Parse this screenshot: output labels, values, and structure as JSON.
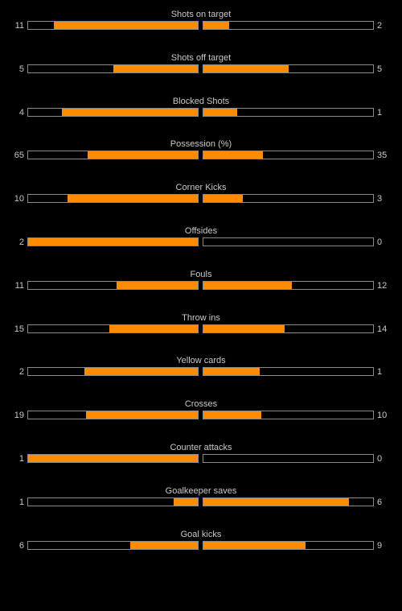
{
  "colors": {
    "background": "#000000",
    "bar_fill": "#ff8c00",
    "bar_border": "#8a8a8a",
    "text": "#c8c8c8"
  },
  "stats": [
    {
      "label": "Shots on target",
      "home": "11",
      "away": "2",
      "home_fill": 0.85,
      "away_fill": 0.15
    },
    {
      "label": "Shots off target",
      "home": "5",
      "away": "5",
      "home_fill": 0.5,
      "away_fill": 0.5
    },
    {
      "label": "Blocked Shots",
      "home": "4",
      "away": "1",
      "home_fill": 0.8,
      "away_fill": 0.2
    },
    {
      "label": "Possession (%)",
      "home": "65",
      "away": "35",
      "home_fill": 0.65,
      "away_fill": 0.35
    },
    {
      "label": "Corner Kicks",
      "home": "10",
      "away": "3",
      "home_fill": 0.77,
      "away_fill": 0.23
    },
    {
      "label": "Offsides",
      "home": "2",
      "away": "0",
      "home_fill": 1.0,
      "away_fill": 0.0
    },
    {
      "label": "Fouls",
      "home": "11",
      "away": "12",
      "home_fill": 0.48,
      "away_fill": 0.52
    },
    {
      "label": "Throw ins",
      "home": "15",
      "away": "14",
      "home_fill": 0.52,
      "away_fill": 0.48
    },
    {
      "label": "Yellow cards",
      "home": "2",
      "away": "1",
      "home_fill": 0.67,
      "away_fill": 0.33
    },
    {
      "label": "Crosses",
      "home": "19",
      "away": "10",
      "home_fill": 0.66,
      "away_fill": 0.34
    },
    {
      "label": "Counter attacks",
      "home": "1",
      "away": "0",
      "home_fill": 1.0,
      "away_fill": 0.0
    },
    {
      "label": "Goalkeeper saves",
      "home": "1",
      "away": "6",
      "home_fill": 0.14,
      "away_fill": 0.86
    },
    {
      "label": "Goal kicks",
      "home": "6",
      "away": "9",
      "home_fill": 0.4,
      "away_fill": 0.6
    }
  ]
}
